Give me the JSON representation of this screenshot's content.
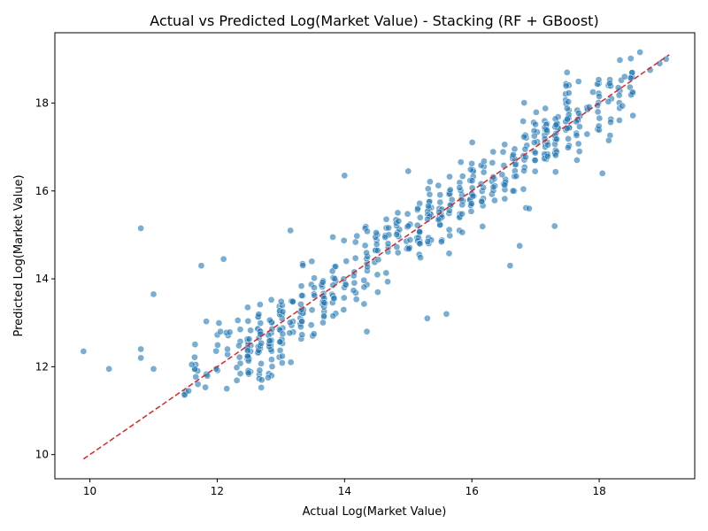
{
  "chart_data": {
    "type": "scatter",
    "title": "Actual vs Predicted Log(Market Value) - Stacking (RF + GBoost)",
    "xlabel": "Actual Log(Market Value)",
    "ylabel": "Predicted Log(Market Value)",
    "xlim": [
      9.45,
      19.5
    ],
    "ylim": [
      9.45,
      19.6
    ],
    "xticks": [
      10,
      12,
      14,
      16,
      18
    ],
    "yticks": [
      10,
      12,
      14,
      16,
      18
    ],
    "point_color": "#1f77b4",
    "reference_line": {
      "from": [
        9.9,
        9.9
      ],
      "to": [
        19.1,
        19.1
      ],
      "color": "#d62728",
      "style": "dashed"
    },
    "scatter_seed": 20240601,
    "scatter_count": 560,
    "outliers": [
      [
        9.9,
        12.35
      ],
      [
        10.3,
        11.95
      ],
      [
        10.8,
        12.4
      ],
      [
        10.8,
        12.2
      ],
      [
        10.8,
        15.15
      ],
      [
        11.0,
        13.65
      ],
      [
        11.0,
        11.95
      ],
      [
        11.75,
        14.3
      ],
      [
        12.1,
        14.45
      ],
      [
        13.15,
        15.1
      ],
      [
        14.0,
        16.35
      ],
      [
        14.35,
        12.8
      ],
      [
        15.0,
        16.45
      ],
      [
        15.3,
        13.1
      ],
      [
        15.6,
        13.2
      ],
      [
        16.6,
        14.3
      ],
      [
        16.75,
        14.75
      ],
      [
        17.3,
        15.2
      ],
      [
        18.05,
        16.4
      ],
      [
        18.15,
        17.15
      ],
      [
        18.8,
        18.75
      ],
      [
        18.95,
        18.9
      ],
      [
        19.05,
        19.0
      ],
      [
        18.4,
        18.6
      ],
      [
        18.3,
        18.35
      ],
      [
        18.0,
        18.15
      ],
      [
        17.9,
        18.25
      ],
      [
        17.65,
        16.7
      ],
      [
        16.9,
        15.6
      ],
      [
        12.05,
        12.8
      ],
      [
        11.55,
        11.45
      ],
      [
        11.6,
        12.05
      ],
      [
        12.15,
        11.5
      ],
      [
        12.7,
        11.7
      ],
      [
        12.8,
        11.75
      ]
    ]
  }
}
